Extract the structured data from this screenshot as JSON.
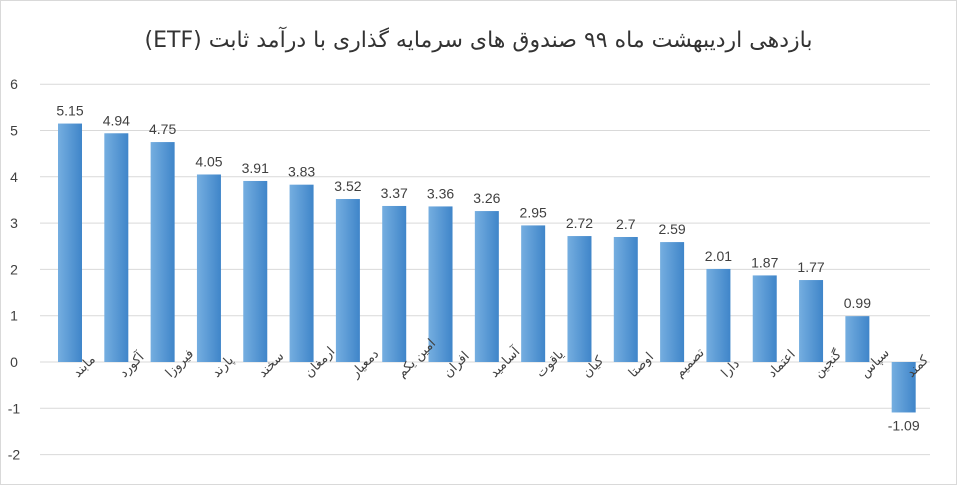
{
  "chart_data": {
    "type": "bar",
    "title": "بازدهی اردیبهشت ماه ۹۹ صندوق های سرمایه گذاری با درآمد ثابت (ETF)",
    "categories": [
      "مابند",
      "آکورد",
      "فیروزا",
      "پارند",
      "سخند",
      "ارمغان",
      "دمعیار",
      "امین یکم",
      "افران",
      "آسامید",
      "یاقوت",
      "کیان",
      "اوصتا",
      "تصمیم",
      "دارا",
      "اعتماد",
      "گنجین",
      "سپاس",
      "کمند"
    ],
    "values": [
      5.15,
      4.94,
      4.75,
      4.05,
      3.91,
      3.83,
      3.52,
      3.37,
      3.36,
      3.26,
      2.95,
      2.72,
      2.7,
      2.59,
      2.01,
      1.87,
      1.77,
      0.99,
      -1.09
    ],
    "value_labels": [
      "5.15",
      "4.94",
      "4.75",
      "4.05",
      "3.91",
      "3.83",
      "3.52",
      "3.37",
      "3.36",
      "3.26",
      "2.95",
      "2.72",
      "2.7",
      "2.59",
      "2.01",
      "1.87",
      "1.77",
      "0.99",
      "-1.09"
    ],
    "yticks": [
      "6",
      "5",
      "4",
      "3",
      "2",
      "1",
      "0",
      "-1",
      "-2"
    ],
    "ylim": [
      -2,
      6
    ],
    "grid": true,
    "legend": "none",
    "bar_color": "#5b9bd5",
    "bar_gradient_light": "#75aee0",
    "bar_gradient_dark": "#3f85c9",
    "gridline_color": "#d9d9d9"
  }
}
